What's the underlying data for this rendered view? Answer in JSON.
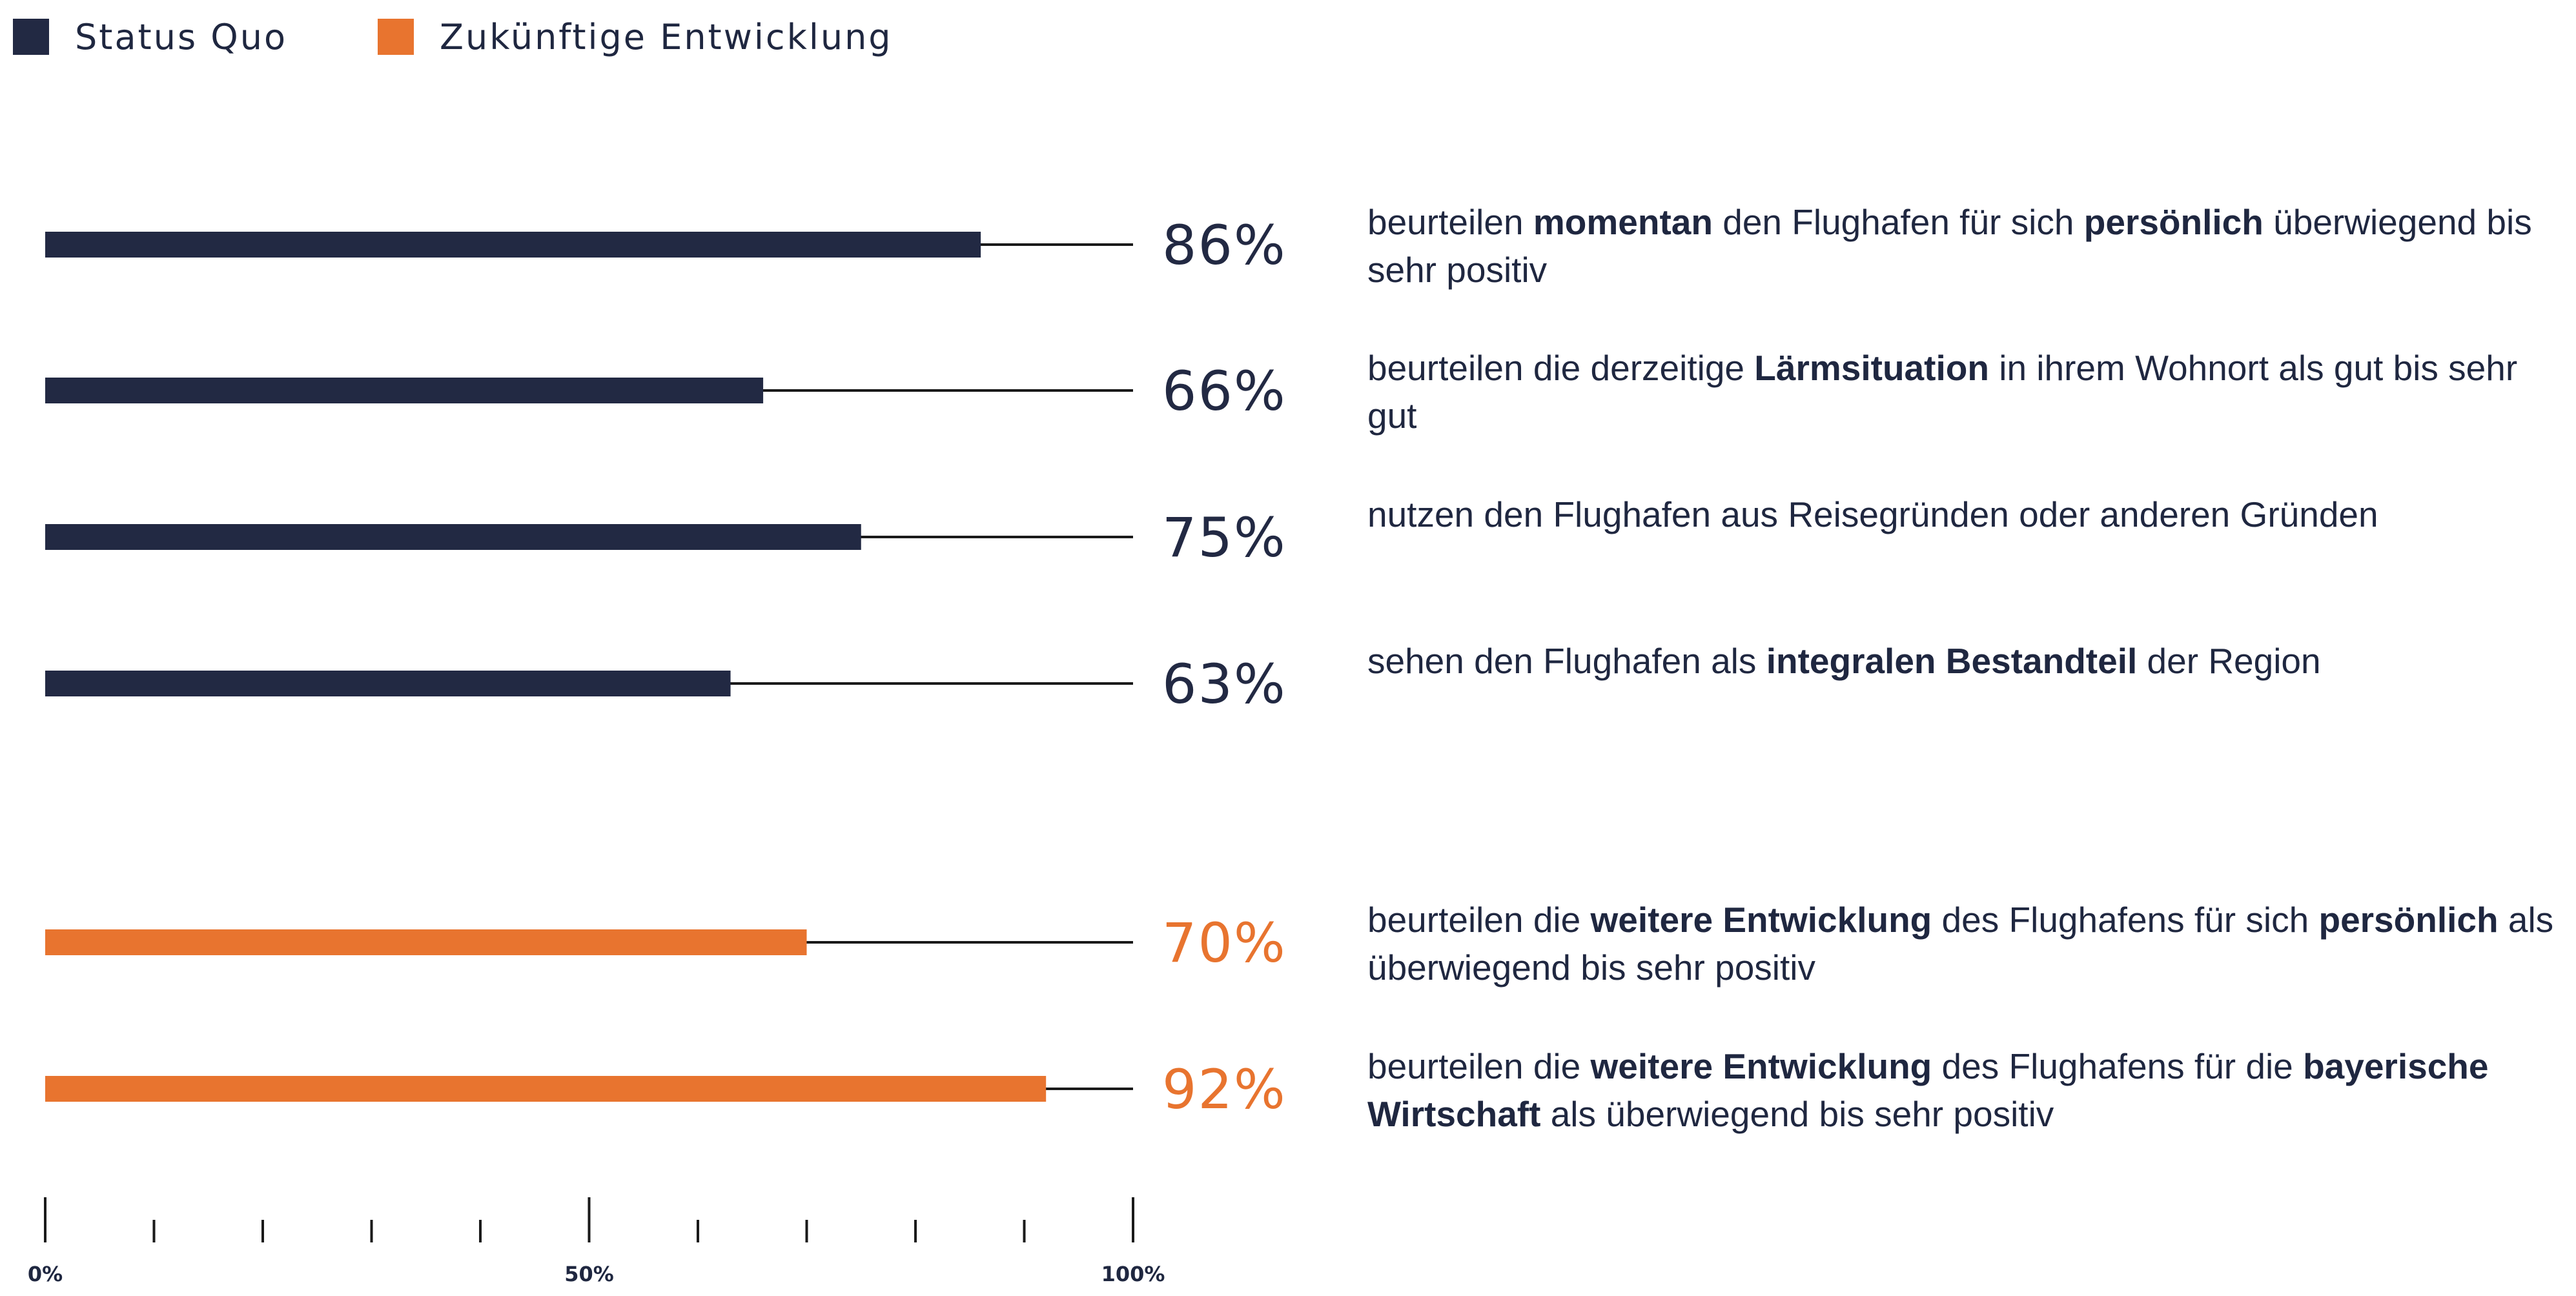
{
  "legend": [
    {
      "label": "Status Quo",
      "color": "#222943"
    },
    {
      "label": "Zukünftige Entwicklung",
      "color": "#e8742f"
    }
  ],
  "chart_data": {
    "type": "bar",
    "orientation": "horizontal",
    "xlim": [
      0,
      100
    ],
    "x_tick_labels": [
      "0%",
      "50%",
      "100%"
    ],
    "x_minor_ticks": [
      0,
      10,
      20,
      30,
      40,
      50,
      60,
      70,
      80,
      90,
      100
    ],
    "series": [
      {
        "name": "Status Quo",
        "color": "#222943",
        "values": [
          86,
          66,
          75,
          63
        ]
      },
      {
        "name": "Zukünftige Entwicklung",
        "color": "#e8742f",
        "values": [
          70,
          92
        ]
      }
    ],
    "bars": [
      {
        "series": "Status Quo",
        "value": 86,
        "label": "86%",
        "segments": [
          {
            "t": "beurteilen "
          },
          {
            "t": "momentan",
            "b": true
          },
          {
            "t": " den Flughafen für sich "
          },
          {
            "t": "persönlich",
            "b": true
          },
          {
            "t": " überwiegend bis sehr positiv"
          }
        ]
      },
      {
        "series": "Status Quo",
        "value": 66,
        "label": "66%",
        "segments": [
          {
            "t": "beurteilen die derzeitige "
          },
          {
            "t": "Lärmsituation",
            "b": true
          },
          {
            "t": " in ihrem Wohnort als gut bis sehr gut"
          }
        ]
      },
      {
        "series": "Status Quo",
        "value": 75,
        "label": "75%",
        "segments": [
          {
            "t": "nutzen den Flughafen aus Reisegründen oder anderen Gründen"
          }
        ]
      },
      {
        "series": "Status Quo",
        "value": 63,
        "label": "63%",
        "segments": [
          {
            "t": "sehen den Flughafen als "
          },
          {
            "t": "integralen Bestandteil",
            "b": true
          },
          {
            "t": " der Region"
          }
        ]
      },
      {
        "series": "Zukünftige Entwicklung",
        "value": 70,
        "label": "70%",
        "segments": [
          {
            "t": "beurteilen die "
          },
          {
            "t": "weitere Entwicklung",
            "b": true
          },
          {
            "t": " des Flughafens für sich "
          },
          {
            "t": "persönlich",
            "b": true
          },
          {
            "t": " als überwiegend bis sehr positiv"
          }
        ]
      },
      {
        "series": "Zukünftige Entwicklung",
        "value": 92,
        "label": "92%",
        "segments": [
          {
            "t": "beurteilen die "
          },
          {
            "t": "weitere Entwicklung",
            "b": true
          },
          {
            "t": " des Flughafens für die "
          },
          {
            "t": "bayerische Wirtschaft",
            "b": true
          },
          {
            "t": " als überwiegend bis sehr positiv"
          }
        ]
      }
    ]
  }
}
